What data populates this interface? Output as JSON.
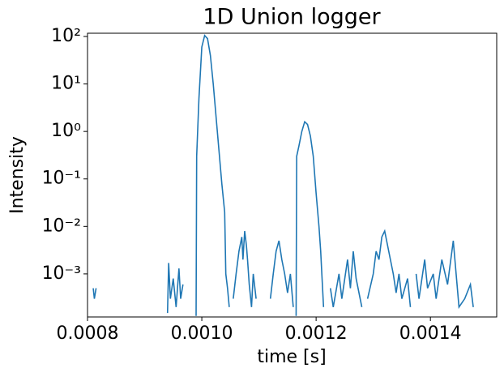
{
  "chart_data": {
    "type": "line",
    "title": "1D Union logger",
    "xlabel": "time [s]",
    "ylabel": "Intensity",
    "yscale": "log",
    "grid": false,
    "xlim": [
      0.0008,
      0.001516
    ],
    "ylim": [
      0.000124,
      117
    ],
    "xticks": [
      0.0008,
      {
        "value": 0.001,
        "label": "0.0010"
      },
      0.0012,
      0.0014
    ],
    "yticks": [
      {
        "value": 0.001,
        "label": "10⁻³"
      },
      {
        "value": 0.01,
        "label": "10⁻²"
      },
      {
        "value": 0.1,
        "label": "10⁻¹"
      },
      {
        "value": 1,
        "label": "10⁰"
      },
      {
        "value": 10,
        "label": "10¹"
      },
      {
        "value": 100,
        "label": "10²"
      }
    ],
    "series": [
      {
        "color": "#1f77b4",
        "x": [
          0.00081,
          0.000812,
          0.000815,
          0.00082,
          0.00094,
          0.000942,
          0.000945,
          0.00095,
          0.000955,
          0.00096,
          0.000963,
          0.000967,
          0.00097,
          0.00099,
          0.000991,
          0.000995,
          0.001,
          0.001005,
          0.00101,
          0.001015,
          0.00102,
          0.001025,
          0.00103,
          0.001035,
          0.00104,
          0.001042,
          0.001045,
          0.001048,
          0.00105,
          0.001055,
          0.00106,
          0.001065,
          0.00107,
          0.001072,
          0.001075,
          0.001078,
          0.00108,
          0.001083,
          0.001087,
          0.00109,
          0.001095,
          0.0011,
          0.00112,
          0.001125,
          0.00113,
          0.001135,
          0.00114,
          0.001145,
          0.00115,
          0.001155,
          0.00116,
          0.001162,
          0.001165,
          0.001166,
          0.00117,
          0.001175,
          0.00118,
          0.001185,
          0.00119,
          0.001195,
          0.0012,
          0.001205,
          0.001208,
          0.00121,
          0.001213,
          0.001218,
          0.001225,
          0.00123,
          0.00124,
          0.001245,
          0.001255,
          0.00126,
          0.001265,
          0.00127,
          0.00128,
          0.001285,
          0.00129,
          0.0013,
          0.001305,
          0.00131,
          0.001315,
          0.00132,
          0.001325,
          0.00133,
          0.001335,
          0.00134,
          0.001345,
          0.00135,
          0.00136,
          0.001365,
          0.00137,
          0.001375,
          0.00138,
          0.00139,
          0.001395,
          0.001405,
          0.00141,
          0.00142,
          0.00143,
          0.00144,
          0.001445,
          0.00145,
          0.00146,
          0.00147,
          0.001475
        ],
        "values": [
          0.0005,
          0.0003,
          0.0005,
          null,
          0.00015,
          0.0017,
          0.0003,
          0.0008,
          0.0002,
          0.0013,
          0.0003,
          0.0006,
          null,
          0.00013,
          0.3,
          5,
          60,
          105,
          90,
          40,
          10,
          2,
          0.4,
          0.08,
          0.02,
          0.001,
          0.0005,
          0.0002,
          null,
          0.0003,
          0.001,
          0.003,
          0.006,
          0.002,
          0.008,
          0.004,
          0.002,
          0.0006,
          0.0002,
          0.001,
          0.0003,
          null,
          0.0003,
          0.001,
          0.003,
          0.005,
          0.002,
          0.001,
          0.0004,
          0.001,
          0.0002,
          null,
          0.00013,
          0.3,
          0.5,
          1.0,
          1.6,
          1.4,
          0.8,
          0.3,
          0.05,
          0.01,
          0.003,
          0.001,
          0.0002,
          null,
          0.0005,
          0.0002,
          0.001,
          0.0003,
          0.002,
          0.0005,
          0.003,
          0.0008,
          0.0002,
          null,
          0.0003,
          0.001,
          0.003,
          0.002,
          0.006,
          0.008,
          0.004,
          0.002,
          0.001,
          0.0004,
          0.001,
          0.0003,
          0.0008,
          0.0002,
          null,
          0.001,
          0.0003,
          0.002,
          0.0005,
          0.001,
          0.0003,
          0.002,
          0.0006,
          0.005,
          0.001,
          0.0002,
          0.0003,
          0.0006,
          0.0002
        ]
      }
    ]
  }
}
